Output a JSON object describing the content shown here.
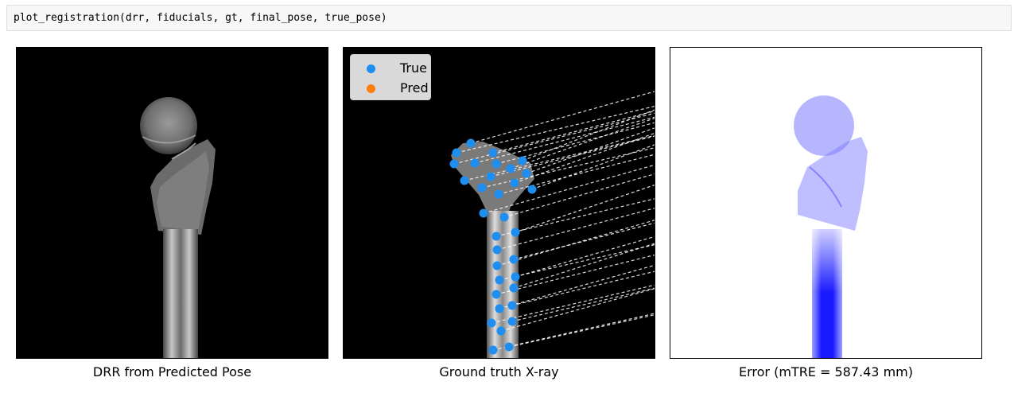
{
  "code_cell": {
    "source": "plot_registration(drr, fiducials, gt, final_pose, true_pose)"
  },
  "panels": [
    {
      "caption": "DRR from Predicted Pose"
    },
    {
      "caption": "Ground truth X-ray"
    },
    {
      "caption": "Error (mTRE = 587.43 mm)"
    }
  ],
  "legend": {
    "items": [
      {
        "label": "True",
        "color": "#1f8ef1"
      },
      {
        "label": "Pred",
        "color": "#ff7f0e"
      }
    ]
  },
  "colors": {
    "fiducial_true": "#1f8ef1",
    "error_map": "#1a1aff",
    "correspondence_line": "#ffffff"
  }
}
